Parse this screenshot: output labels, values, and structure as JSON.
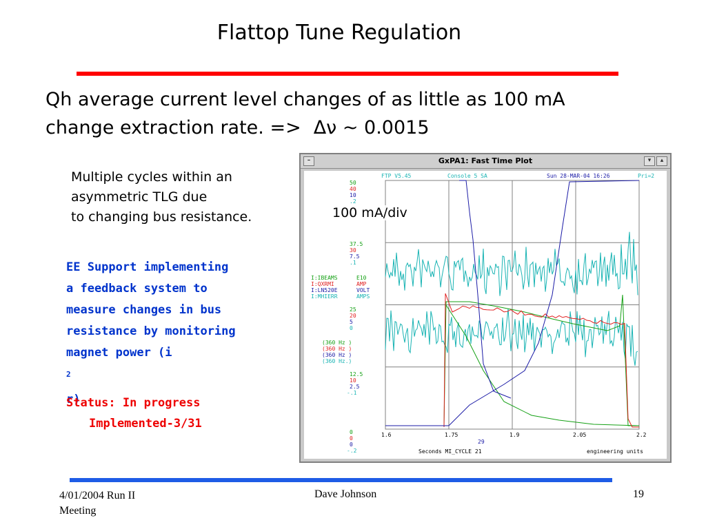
{
  "slide": {
    "title": "Flattop Tune Regulation",
    "lead_line1": "Qh average current level changes of as little as 100 mA",
    "lead_line2_a": "change extraction rate.  =>",
    "lead_line2_b": "Δν ~ 0.0015",
    "note": [
      "Multiple cycles within an",
      "asymmetric TLG due",
      "to changing bus resistance."
    ],
    "ee_lines": [
      "EE Support implementing",
      "a feedback system to",
      "measure changes in bus",
      "resistance by monitoring"
    ],
    "ee_last_a": "magnet power (i",
    "ee_last_sup": "2",
    "ee_last_b": "r)",
    "status_line1": "Status: In progress",
    "status_line2": "Implemented-3/31",
    "annotation": "100 mA/div"
  },
  "scope": {
    "window_title": "GxPA1: Fast Time Plot",
    "header_left": "FTP V5.45",
    "header_console": "Console   5    SA",
    "header_date": "Sun  28-MAR-04   16:26",
    "header_pri": "Pri=2",
    "scale1": [
      "50",
      "40",
      "10",
      ".2"
    ],
    "scale2": [
      "37.5",
      "30",
      "7.5",
      ".1"
    ],
    "devices": [
      {
        "name": "I:IBEAMS",
        "unit": "E10"
      },
      {
        "name": "I:QXRMI",
        "unit": "AMP"
      },
      {
        "name": "I:LN520E",
        "unit": "VOLT"
      },
      {
        "name": "I:MHIERR",
        "unit": "AMPS"
      }
    ],
    "scale3": [
      "25",
      "20",
      "5",
      "0"
    ],
    "rates": [
      "(360  Hz )",
      "(360  Hz )",
      "(360  Hz )",
      "(360  Hz.)"
    ],
    "scale4": [
      "12.5",
      "10",
      "2.5",
      "-.1"
    ],
    "scale5": [
      "0",
      "0",
      "0",
      "-.2"
    ],
    "x_ticks": [
      "1.6",
      "1.75",
      "1.9",
      "2.05",
      "2.2"
    ],
    "x_extra": "29",
    "x_label": "Seconds    MI_CYCLE  21",
    "units_label": "engineering units",
    "colors": {
      "blue": "#1a1aa6",
      "red": "#e02020",
      "green": "#14a014",
      "cyan": "#17b3b3",
      "grid": "#808080"
    }
  },
  "footer": {
    "date_event": "4/01/2004   Run II",
    "event_cont": "Meeting",
    "author": "Dave Johnson",
    "page": "19"
  }
}
